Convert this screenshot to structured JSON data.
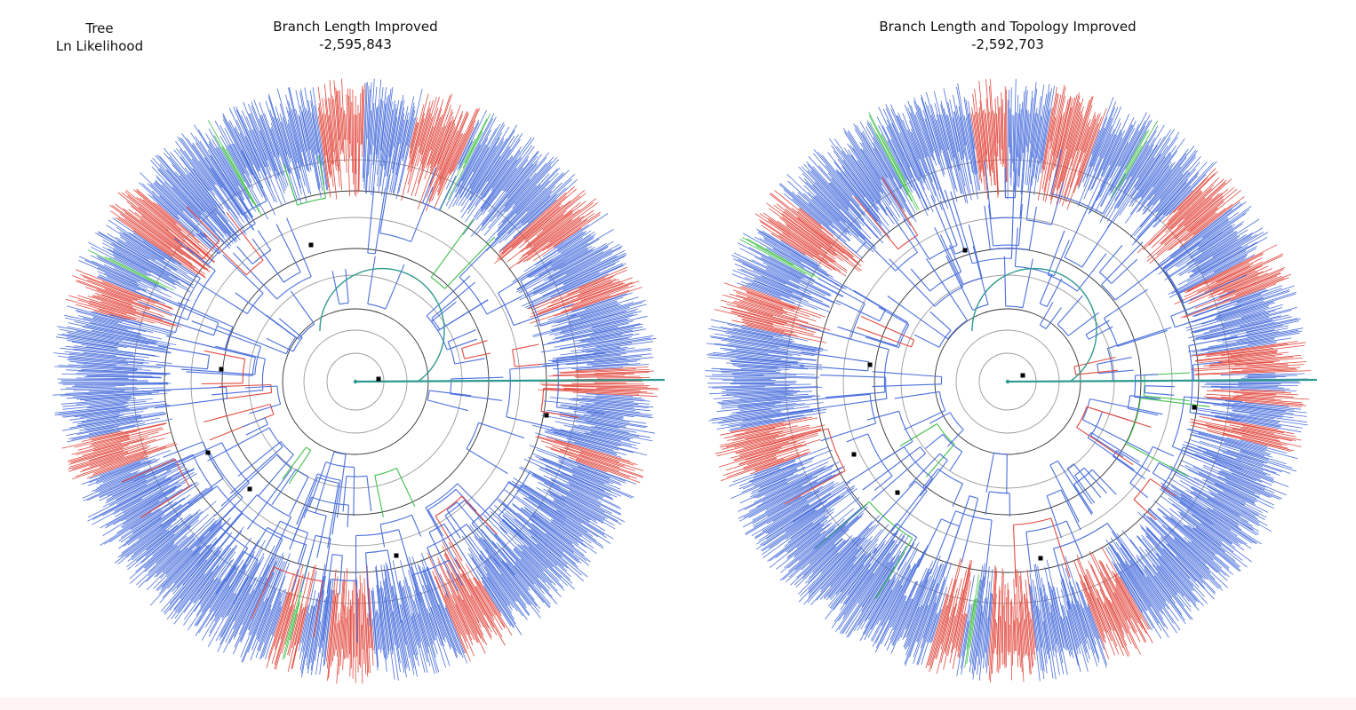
{
  "header": {
    "line1": "Tree",
    "line2": "Ln Likelihood"
  },
  "trees": [
    {
      "id": "left",
      "title": "Branch Length Improved",
      "log_likelihood": "-2,595,843"
    },
    {
      "id": "right",
      "title": "Branch Length and Topology Improved",
      "log_likelihood": "-2,592,703"
    }
  ],
  "colors": {
    "majority_branch": "#4a6fdc",
    "alternate_branch": "#e2493f",
    "transition_branch": "#3fbf4a",
    "intermediate_branch": "#2f9a8f",
    "ring_dark": "#333333",
    "ring_light": "#9a9a9a",
    "node_marker": "#000000"
  }
}
